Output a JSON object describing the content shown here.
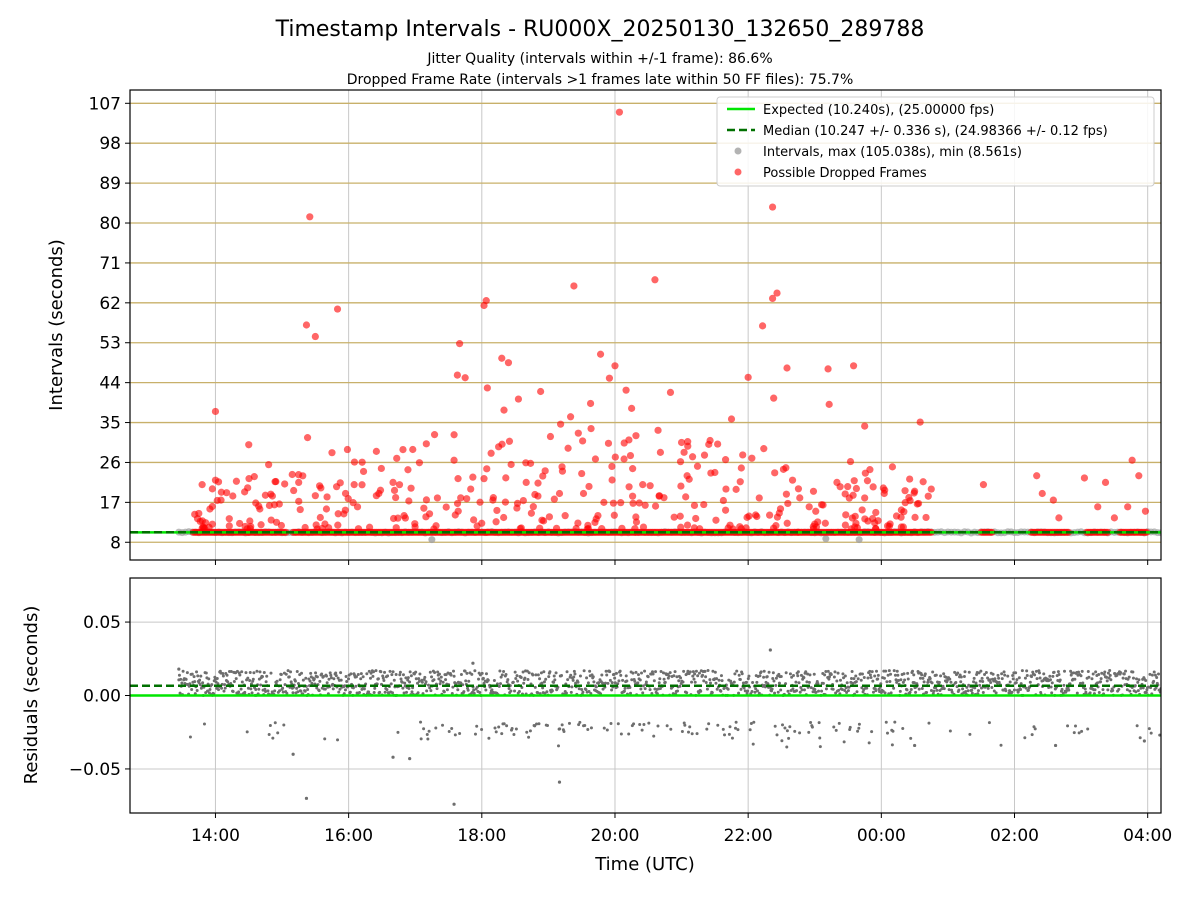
{
  "figure": {
    "title": "Timestamp Intervals - RU000X_20250130_132650_289788",
    "subtitle_1": "Jitter Quality (intervals within +/-1 frame): 86.6%",
    "subtitle_2": "Dropped Frame Rate (intervals >1 frames late within 50 FF files): 75.7%"
  },
  "colors": {
    "expected": "#00e600",
    "median": "#007000",
    "intervals": "#a0a0a0",
    "dropped": "#ff0000",
    "residuals": "#6e6e6e",
    "hgrid_top": "#c8b06a",
    "grid": "#c8c8c8"
  },
  "chart_data": [
    {
      "type": "scatter",
      "ylabel": "Intervals (seconds)",
      "xlabel": "",
      "ylim": [
        4.0,
        110.0
      ],
      "xlim": [
        "12:43",
        "04:12"
      ],
      "yticks": [
        8,
        17,
        26,
        35,
        44,
        53,
        62,
        71,
        80,
        89,
        98,
        107
      ],
      "grid": "on",
      "legend_placement": "top-right",
      "legend": [
        "Expected (10.240s), (25.00000 fps)",
        "Median (10.247 +/- 0.336 s), (24.98366 +/- 0.12 fps)",
        "Intervals, max (105.038s), min (8.561s)",
        "Possible Dropped Frames"
      ],
      "series": [
        {
          "name": "Expected (10.240s), (25.00000 fps)",
          "kind": "hline",
          "y": 10.24
        },
        {
          "name": "Median (10.247 +/- 0.336 s), (24.98366 +/- 0.12 fps)",
          "kind": "hline-dashed",
          "y": 10.247
        },
        {
          "name": "Intervals, max (105.038s), min (8.561s)",
          "kind": "points",
          "x_range": [
            "13:27",
            "04:12"
          ],
          "y_typical": 10.24,
          "max": 105.038,
          "min": 8.561,
          "low_points": [
            {
              "x": "17:15",
              "y": 8.6
            },
            {
              "x": "23:10",
              "y": 8.8
            },
            {
              "x": "23:40",
              "y": 8.6
            }
          ]
        },
        {
          "name": "Possible Dropped Frames",
          "kind": "points",
          "baseline": {
            "y": 10.24,
            "x_runs": [
              [
                "13:40",
                "14:30"
              ],
              [
                "14:30",
                "15:05"
              ],
              [
                "15:10",
                "18:05"
              ],
              [
                "18:05",
                "22:45"
              ],
              [
                "22:45",
                "00:45"
              ],
              [
                "01:30",
                "01:40"
              ],
              [
                "02:15",
                "02:50"
              ],
              [
                "03:05",
                "03:25"
              ],
              [
                "03:35",
                "04:00"
              ]
            ]
          },
          "points": [
            {
              "x": "20:04",
              "y": 105.0
            },
            {
              "x": "22:22",
              "y": 83.6
            },
            {
              "x": "15:25",
              "y": 81.4
            },
            {
              "x": "20:36",
              "y": 67.2
            },
            {
              "x": "19:23",
              "y": 65.8
            },
            {
              "x": "22:26",
              "y": 64.2
            },
            {
              "x": "22:22",
              "y": 63.0
            },
            {
              "x": "18:04",
              "y": 62.5
            },
            {
              "x": "18:02",
              "y": 61.4
            },
            {
              "x": "15:50",
              "y": 60.6
            },
            {
              "x": "15:22",
              "y": 57.0
            },
            {
              "x": "22:13",
              "y": 56.8
            },
            {
              "x": "15:30",
              "y": 54.4
            },
            {
              "x": "17:40",
              "y": 52.8
            },
            {
              "x": "19:47",
              "y": 50.4
            },
            {
              "x": "18:18",
              "y": 49.5
            },
            {
              "x": "18:24",
              "y": 48.5
            },
            {
              "x": "20:00",
              "y": 47.8
            },
            {
              "x": "23:35",
              "y": 47.8
            },
            {
              "x": "23:12",
              "y": 47.1
            },
            {
              "x": "22:35",
              "y": 47.3
            },
            {
              "x": "17:38",
              "y": 45.7
            },
            {
              "x": "17:45",
              "y": 45.1
            },
            {
              "x": "19:55",
              "y": 45.0
            },
            {
              "x": "22:00",
              "y": 45.2
            },
            {
              "x": "18:05",
              "y": 42.8
            },
            {
              "x": "18:53",
              "y": 42.0
            },
            {
              "x": "20:10",
              "y": 42.3
            },
            {
              "x": "20:50",
              "y": 41.8
            },
            {
              "x": "22:23",
              "y": 40.5
            },
            {
              "x": "18:33",
              "y": 40.3
            },
            {
              "x": "19:38",
              "y": 39.3
            },
            {
              "x": "23:13",
              "y": 39.1
            },
            {
              "x": "18:20",
              "y": 37.8
            },
            {
              "x": "14:00",
              "y": 37.5
            },
            {
              "x": "19:20",
              "y": 36.3
            },
            {
              "x": "20:15",
              "y": 38.2
            },
            {
              "x": "21:45",
              "y": 35.8
            },
            {
              "x": "00:35",
              "y": 35.1
            },
            {
              "x": "23:45",
              "y": 34.2
            },
            {
              "x": "15:23",
              "y": 31.6
            },
            {
              "x": "16:25",
              "y": 28.5
            },
            {
              "x": "15:45",
              "y": 28.2
            },
            {
              "x": "17:10",
              "y": 30.2
            },
            {
              "x": "14:30",
              "y": 30.0
            },
            {
              "x": "17:35",
              "y": 26.5
            },
            {
              "x": "14:35",
              "y": 22.8
            },
            {
              "x": "14:45",
              "y": 18.6
            },
            {
              "x": "13:48",
              "y": 21.0
            },
            {
              "x": "14:00",
              "y": 22.0
            },
            {
              "x": "13:55",
              "y": 15.5
            },
            {
              "x": "14:05",
              "y": 17.5
            },
            {
              "x": "14:40",
              "y": 15.5
            },
            {
              "x": "14:55",
              "y": 12.5
            },
            {
              "x": "13:45",
              "y": 14.5
            },
            {
              "x": "15:15",
              "y": 21.5
            },
            {
              "x": "15:30",
              "y": 18.5
            },
            {
              "x": "15:40",
              "y": 15.5
            },
            {
              "x": "16:05",
              "y": 21.0
            },
            {
              "x": "16:25",
              "y": 18.5
            },
            {
              "x": "16:40",
              "y": 21.5
            },
            {
              "x": "16:50",
              "y": 14.0
            },
            {
              "x": "17:20",
              "y": 18.0
            },
            {
              "x": "17:50",
              "y": 20.0
            },
            {
              "x": "18:10",
              "y": 17.5
            },
            {
              "x": "18:40",
              "y": 21.5
            },
            {
              "x": "19:10",
              "y": 19.0
            },
            {
              "x": "19:30",
              "y": 23.5
            },
            {
              "x": "19:50",
              "y": 17.0
            },
            {
              "x": "20:25",
              "y": 21.0
            },
            {
              "x": "20:40",
              "y": 18.5
            },
            {
              "x": "21:05",
              "y": 23.0
            },
            {
              "x": "21:20",
              "y": 16.5
            },
            {
              "x": "21:40",
              "y": 20.0
            },
            {
              "x": "22:10",
              "y": 18.0
            },
            {
              "x": "22:40",
              "y": 22.0
            },
            {
              "x": "22:55",
              "y": 16.0
            },
            {
              "x": "23:20",
              "y": 21.5
            },
            {
              "x": "23:45",
              "y": 18.0
            },
            {
              "x": "00:10",
              "y": 25.0
            },
            {
              "x": "00:30",
              "y": 19.5
            },
            {
              "x": "00:45",
              "y": 20.0
            },
            {
              "x": "01:32",
              "y": 21.0
            },
            {
              "x": "02:20",
              "y": 23.0
            },
            {
              "x": "02:25",
              "y": 19.0
            },
            {
              "x": "02:35",
              "y": 17.5
            },
            {
              "x": "02:40",
              "y": 13.5
            },
            {
              "x": "03:03",
              "y": 22.5
            },
            {
              "x": "03:15",
              "y": 16.0
            },
            {
              "x": "03:22",
              "y": 21.5
            },
            {
              "x": "03:30",
              "y": 13.5
            },
            {
              "x": "03:42",
              "y": 16.0
            },
            {
              "x": "03:46",
              "y": 26.5
            },
            {
              "x": "03:52",
              "y": 23.0
            },
            {
              "x": "03:58",
              "y": 15.0
            }
          ],
          "cloud": {
            "x_range": [
              "13:40",
              "00:45"
            ],
            "y_range": [
              11.0,
              35.0
            ],
            "count": 320
          }
        }
      ]
    },
    {
      "type": "scatter",
      "ylabel": "Residuals (seconds)",
      "xlabel": "Time (UTC)",
      "ylim": [
        -0.08,
        0.08
      ],
      "xlim": [
        "12:43",
        "04:12"
      ],
      "yticks": [
        0.05,
        0.0,
        -0.05
      ],
      "ytick_labels": [
        "0.05",
        "0.00",
        "−0.05"
      ],
      "xticks": [
        "14:00",
        "16:00",
        "18:00",
        "20:00",
        "22:00",
        "00:00",
        "02:00",
        "04:00"
      ],
      "grid": "on",
      "series": [
        {
          "kind": "hline",
          "y": 0.0
        },
        {
          "kind": "hline-dashed",
          "y": 0.0066
        },
        {
          "kind": "points",
          "x_range": [
            "13:27",
            "04:12"
          ],
          "band_main": [
            0.0,
            0.017
          ],
          "band_low": [
            -0.027,
            -0.018
          ],
          "outliers": [
            {
              "x": "15:22",
              "y": -0.07
            },
            {
              "x": "17:35",
              "y": -0.074
            },
            {
              "x": "19:10",
              "y": -0.059
            },
            {
              "x": "16:40",
              "y": -0.042
            },
            {
              "x": "16:55",
              "y": -0.043
            },
            {
              "x": "22:20",
              "y": 0.031
            },
            {
              "x": "17:52",
              "y": 0.022
            },
            {
              "x": "13:27",
              "y": 0.018
            },
            {
              "x": "03:57",
              "y": -0.031
            },
            {
              "x": "02:37",
              "y": -0.034
            },
            {
              "x": "00:30",
              "y": -0.034
            },
            {
              "x": "15:10",
              "y": -0.04
            }
          ]
        }
      ]
    }
  ]
}
